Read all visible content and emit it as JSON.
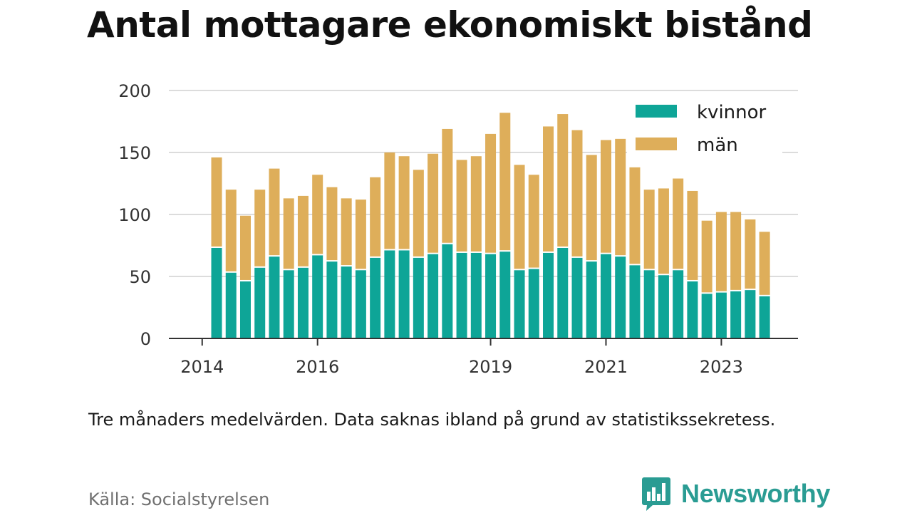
{
  "title": "Antal mottagare ekonomiskt bistånd",
  "note": "Tre månaders medelvärden. Data saknas ibland på grund av statistikssekretess.",
  "source": "Källa: Socialstyrelsen",
  "brand": {
    "name": "Newsworthy",
    "logo_icon": "chart-bubble-icon",
    "color": "#2a9c93"
  },
  "colors": {
    "kvinnor": "#0ea597",
    "man": "#deae5a",
    "grid": "#dcdcdc",
    "axis": "#333333"
  },
  "chart_data": {
    "type": "bar",
    "stacked": true,
    "title": "Antal mottagare ekonomiskt bistånd",
    "xlabel": "",
    "ylabel": "",
    "ylim": [
      0,
      200
    ],
    "yticks": [
      0,
      50,
      100,
      150,
      200
    ],
    "xticks": [
      "2014",
      "2016",
      "2019",
      "2021",
      "2023"
    ],
    "grid": true,
    "legend_position": "top-right",
    "x_start": "2014-Q1",
    "x_start_year": 2014,
    "periods_per_year": 4,
    "categories": [
      "2014-Q2",
      "2014-Q3",
      "2014-Q4",
      "2015-Q1",
      "2015-Q2",
      "2015-Q3",
      "2015-Q4",
      "2016-Q1",
      "2016-Q2",
      "2016-Q3",
      "2016-Q4",
      "2017-Q1",
      "2017-Q2",
      "2017-Q3",
      "2017-Q4",
      "2018-Q1",
      "2018-Q2",
      "2018-Q3",
      "2018-Q4",
      "2019-Q1",
      "2019-Q2",
      "2019-Q3",
      "2019-Q4",
      "2020-Q1",
      "2020-Q2",
      "2020-Q3",
      "2020-Q4",
      "2021-Q1",
      "2021-Q2",
      "2021-Q3",
      "2021-Q4",
      "2022-Q1",
      "2022-Q2",
      "2022-Q3",
      "2022-Q4",
      "2023-Q1",
      "2023-Q2",
      "2023-Q3",
      "2023-Q4"
    ],
    "series": [
      {
        "name": "kvinnor",
        "values": [
          73,
          53,
          46,
          57,
          66,
          55,
          57,
          67,
          62,
          58,
          55,
          65,
          71,
          71,
          65,
          68,
          76,
          69,
          69,
          68,
          70,
          55,
          56,
          69,
          73,
          65,
          62,
          68,
          66,
          59,
          55,
          51,
          55,
          46,
          36,
          37,
          38,
          39,
          34
        ]
      },
      {
        "name": "män",
        "values": [
          73,
          67,
          53,
          63,
          71,
          58,
          58,
          65,
          60,
          55,
          57,
          65,
          79,
          76,
          71,
          81,
          93,
          75,
          78,
          97,
          112,
          85,
          76,
          102,
          108,
          103,
          86,
          92,
          95,
          79,
          65,
          70,
          74,
          73,
          59,
          65,
          64,
          57,
          52
        ]
      }
    ]
  }
}
